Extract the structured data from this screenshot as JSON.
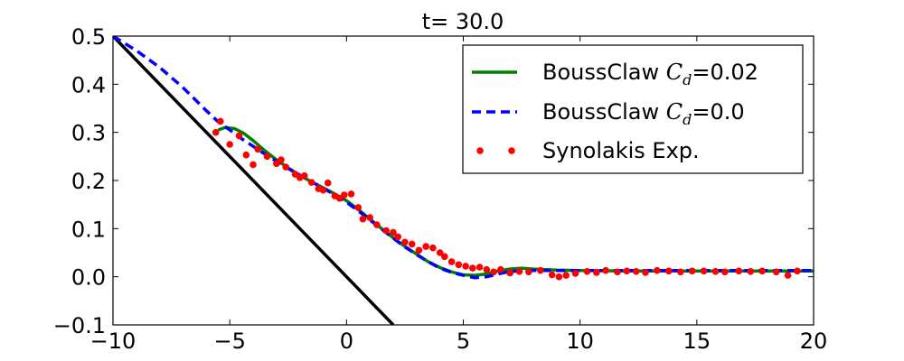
{
  "chart_data": {
    "type": "line",
    "title": "t= 30.0",
    "xlim": [
      -10,
      20
    ],
    "ylim": [
      -0.1,
      0.5
    ],
    "xticks": [
      -10,
      -5,
      0,
      5,
      10,
      15,
      20
    ],
    "yticks": [
      -0.1,
      0.0,
      0.1,
      0.2,
      0.3,
      0.4,
      0.5
    ],
    "xtick_labels": [
      "−10",
      "−5",
      "0",
      "5",
      "10",
      "15",
      "20"
    ],
    "ytick_labels": [
      "−0.1",
      "0.0",
      "0.1",
      "0.2",
      "0.3",
      "0.4",
      "0.5"
    ],
    "grid": false,
    "legend_position": "top-right",
    "series": [
      {
        "label_text": "BoussClaw ",
        "label_math_sym": "C",
        "label_math_sub": "d",
        "label_suffix": "=0.02",
        "color": "#008000",
        "style": "solid",
        "x": [
          -5.5,
          -5.2,
          -4.8,
          -4.4,
          -4.0,
          -3.5,
          -3.0,
          -2.5,
          -2.0,
          -1.5,
          -1.0,
          -0.5,
          0.0,
          0.5,
          1.0,
          1.5,
          2.0,
          2.5,
          3.0,
          3.5,
          4.0,
          4.5,
          5.0,
          5.5,
          6.0,
          6.5,
          7.0,
          7.5,
          8.0,
          9.0,
          10.0,
          12.0,
          14.0,
          16.0,
          18.0,
          20.0
        ],
        "y": [
          0.305,
          0.31,
          0.308,
          0.298,
          0.283,
          0.262,
          0.243,
          0.226,
          0.211,
          0.197,
          0.185,
          0.172,
          0.158,
          0.14,
          0.12,
          0.1,
          0.081,
          0.063,
          0.047,
          0.031,
          0.019,
          0.01,
          0.004,
          0.003,
          0.006,
          0.012,
          0.016,
          0.018,
          0.016,
          0.014,
          0.013,
          0.012,
          0.012,
          0.012,
          0.012,
          0.012
        ]
      },
      {
        "label_text": "BoussClaw ",
        "label_math_sym": "C",
        "label_math_sub": "d",
        "label_suffix": "=0.0",
        "color": "#0000ff",
        "style": "dashed",
        "x": [
          -10.0,
          -9.0,
          -8.0,
          -7.0,
          -6.0,
          -5.5,
          -5.0,
          -4.5,
          -4.0,
          -3.5,
          -3.0,
          -2.5,
          -2.0,
          -1.5,
          -1.0,
          -0.5,
          0.0,
          0.5,
          1.0,
          1.5,
          2.0,
          2.5,
          3.0,
          3.5,
          4.0,
          4.5,
          5.0,
          5.5,
          6.0,
          6.5,
          7.0,
          8.0,
          9.0,
          10.0,
          12.0,
          14.0,
          16.0,
          18.0,
          20.0
        ],
        "y": [
          0.5,
          0.47,
          0.435,
          0.393,
          0.345,
          0.322,
          0.305,
          0.287,
          0.271,
          0.255,
          0.24,
          0.225,
          0.211,
          0.197,
          0.184,
          0.17,
          0.155,
          0.137,
          0.118,
          0.099,
          0.08,
          0.062,
          0.046,
          0.031,
          0.018,
          0.009,
          0.003,
          -0.002,
          0.0,
          0.006,
          0.011,
          0.013,
          0.013,
          0.013,
          0.013,
          0.013,
          0.013,
          0.013,
          0.013
        ]
      },
      {
        "label_text": "Synolakis Exp.",
        "color": "#ff0000",
        "style": "markers",
        "x": [
          -5.6,
          -5.4,
          -5.0,
          -4.6,
          -4.3,
          -4.0,
          -3.8,
          -3.4,
          -3.0,
          -2.8,
          -2.6,
          -2.2,
          -2.0,
          -1.8,
          -1.5,
          -1.2,
          -1.0,
          -0.8,
          -0.5,
          -0.3,
          -0.1,
          0.2,
          0.5,
          0.7,
          1.0,
          1.3,
          1.7,
          2.0,
          2.2,
          2.5,
          2.8,
          3.1,
          3.4,
          3.7,
          4.0,
          4.2,
          4.5,
          4.8,
          5.1,
          5.4,
          5.7,
          6.0,
          6.3,
          6.6,
          7.0,
          7.4,
          7.8,
          8.3,
          8.8,
          9.1,
          9.4,
          9.8,
          10.3,
          10.7,
          11.1,
          11.6,
          12.0,
          12.4,
          12.8,
          13.3,
          13.8,
          14.3,
          14.8,
          15.3,
          15.8,
          16.2,
          16.8,
          17.3,
          17.8,
          18.4,
          18.9,
          19.3
        ],
        "y": [
          0.3,
          0.323,
          0.275,
          0.293,
          0.253,
          0.233,
          0.265,
          0.25,
          0.235,
          0.243,
          0.228,
          0.213,
          0.206,
          0.21,
          0.196,
          0.183,
          0.18,
          0.195,
          0.168,
          0.163,
          0.17,
          0.172,
          0.144,
          0.12,
          0.123,
          0.108,
          0.096,
          0.092,
          0.083,
          0.072,
          0.068,
          0.055,
          0.063,
          0.06,
          0.05,
          0.042,
          0.031,
          0.025,
          0.022,
          0.018,
          0.02,
          0.015,
          0.01,
          0.015,
          0.008,
          0.011,
          0.01,
          0.013,
          0.004,
          0.0,
          0.003,
          0.007,
          0.011,
          0.009,
          0.013,
          0.01,
          0.012,
          0.011,
          0.009,
          0.013,
          0.012,
          0.01,
          0.012,
          0.012,
          0.011,
          0.01,
          0.012,
          0.011,
          0.012,
          0.01,
          0.003,
          0.012
        ]
      }
    ],
    "shoreline": {
      "color": "#000000",
      "x": [
        -10,
        2
      ],
      "y": [
        0.5,
        -0.1
      ]
    }
  }
}
